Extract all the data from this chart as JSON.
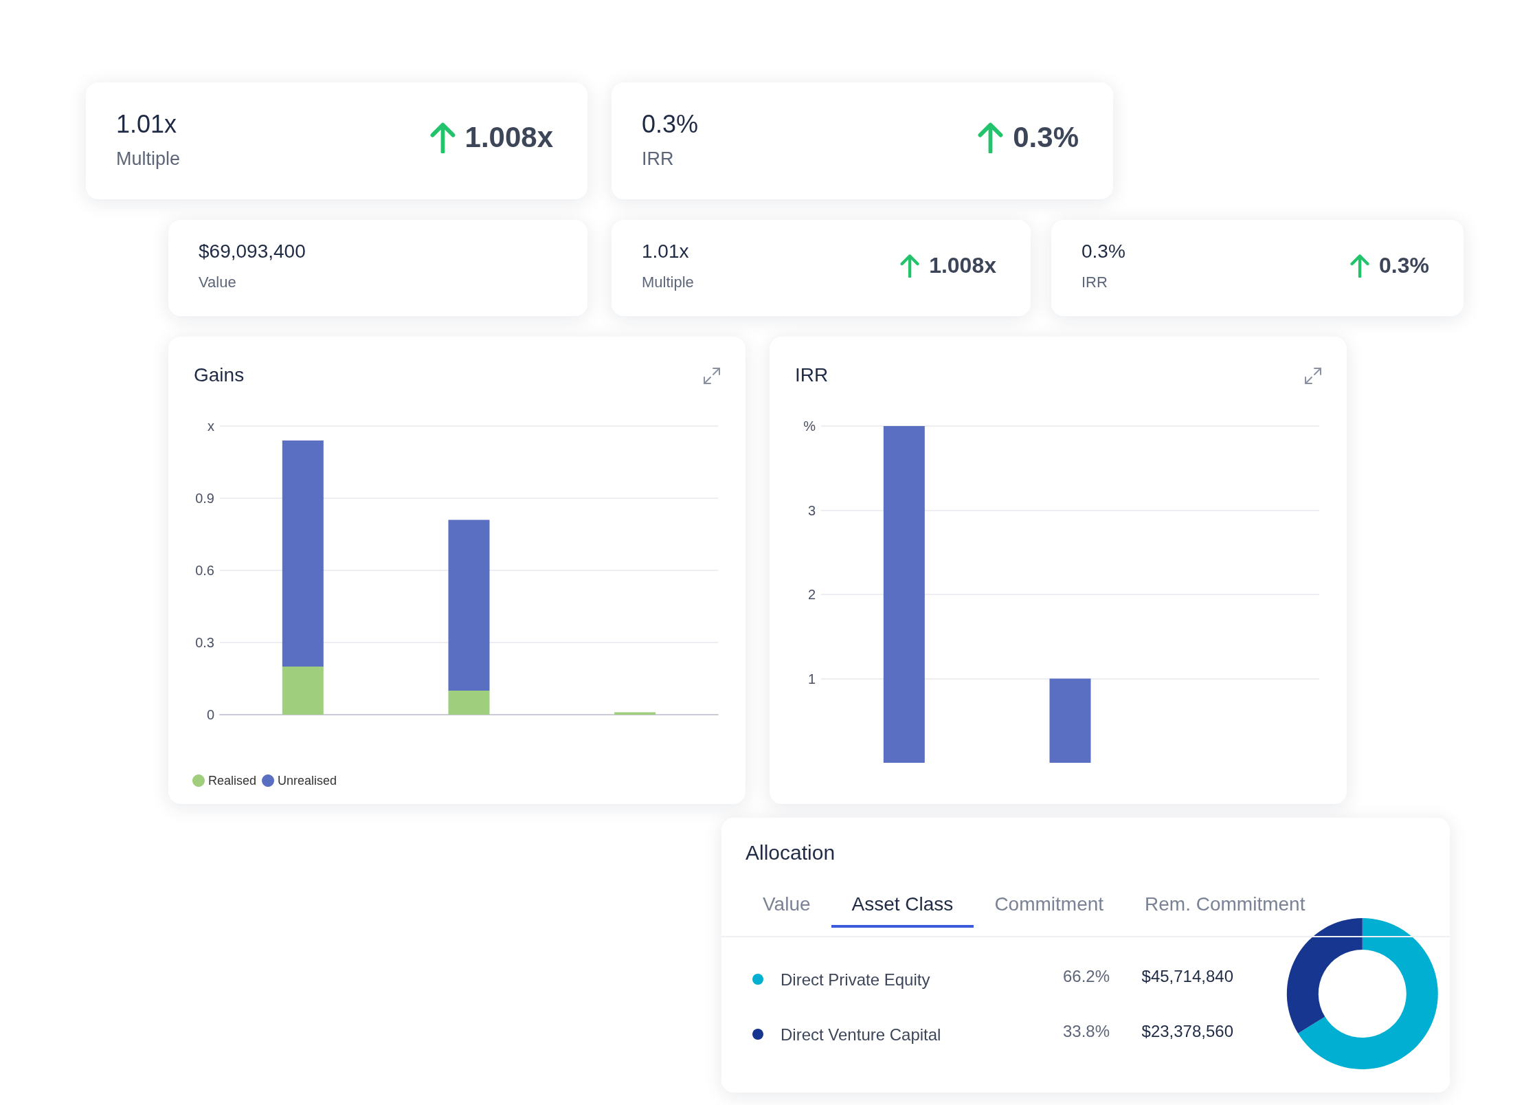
{
  "chart_data": [
    {
      "type": "other",
      "annotations": [
        "1.01x",
        "Multiple",
        "1.008x",
        "0.3%",
        "IRR",
        "0.3%",
        "$69,093,400",
        "Value",
        "1.01x",
        "Multiple",
        "1.008x",
        "0.3%",
        "IRR",
        "0.3%"
      ]
    },
    {
      "type": "bar",
      "title": "Gains",
      "stacked": true,
      "categories": [
        null,
        null,
        null
      ],
      "series": [
        {
          "name": "Realised",
          "color": "#9fce7c",
          "values": [
            0.2,
            0.1,
            0.01
          ]
        },
        {
          "name": "Unrealised",
          "color": "#5b6fc2",
          "values": [
            0.94,
            0.71,
            0
          ]
        }
      ],
      "ylim": [
        0,
        1.2
      ],
      "yticks": [
        0,
        0.3,
        0.6,
        0.9,
        {
          "value": 1.2,
          "label": "x"
        }
      ],
      "grid": "y",
      "legend": "bottom left"
    },
    {
      "type": "bar",
      "title": "IRR",
      "categories": [
        null,
        null,
        null
      ],
      "values": [
        4,
        1,
        null
      ],
      "color": "#5b6fc2",
      "ylim": [
        0,
        4
      ],
      "yticks": [
        1,
        2,
        3,
        {
          "value": 4,
          "label": "%"
        }
      ],
      "grid": "y",
      "tick_labels": "y"
    },
    {
      "type": "donut",
      "title": "Allocation",
      "categories": [
        "Direct Private Equity",
        "Direct Venture Capital"
      ],
      "values": [
        66.2,
        33.8
      ],
      "colors": [
        "#00afd1",
        "#17368f"
      ],
      "value_labels": [
        "66.2%",
        "33.8%"
      ],
      "legend": "left",
      "annotations": [
        "Value",
        "Asset Class",
        "Commitment",
        "Rem. Commitment",
        "$45,714,840",
        "$23,378,560"
      ]
    }
  ]
}
